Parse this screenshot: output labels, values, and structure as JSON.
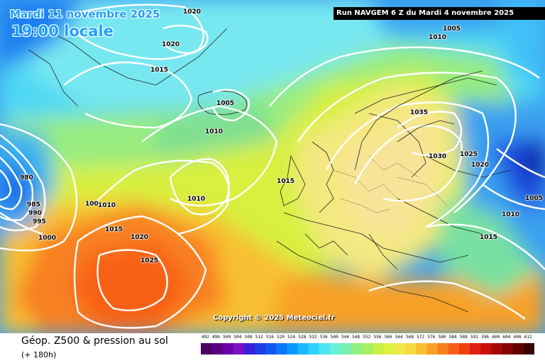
{
  "header": {
    "date_text": "Mardi 11 novembre 2025",
    "time_text": "19:00 locale",
    "run_text": "Run NAVGEM 6 Z du Mardi 4 novembre 2025"
  },
  "copyright": "Copyright © 2025 Meteociel.fr",
  "footer": {
    "title": "Géop. Z500 & pression au sol",
    "subtitle": "(+ 180h)"
  },
  "scale": {
    "labels": [
      "492",
      "496",
      "500",
      "504",
      "508",
      "512",
      "516",
      "520",
      "524",
      "528",
      "532",
      "536",
      "540",
      "544",
      "548",
      "552",
      "556",
      "560",
      "564",
      "568",
      "572",
      "576",
      "580",
      "584",
      "588",
      "592",
      "596",
      "600",
      "604",
      "608",
      "612"
    ],
    "colors": [
      "#4b0060",
      "#5a0080",
      "#6a00a8",
      "#7a10c8",
      "#3a20d8",
      "#1e3ce8",
      "#1058f0",
      "#0a78f8",
      "#0a98ff",
      "#18b8ff",
      "#30d0ff",
      "#50e4f4",
      "#68f0d8",
      "#78f0b0",
      "#90f080",
      "#a8f060",
      "#c8f048",
      "#e0f040",
      "#f0e848",
      "#f8d840",
      "#f8c030",
      "#f8a028",
      "#f88020",
      "#f86018",
      "#f04010",
      "#e02010",
      "#c81008",
      "#a80808",
      "#880404",
      "#600000",
      "#380000"
    ]
  },
  "isobar_labels": [
    {
      "text": "1020",
      "id": "i1020-top"
    },
    {
      "text": "1020",
      "id": "i1020-greenland"
    },
    {
      "text": "1015",
      "id": "i1015-greenland"
    },
    {
      "text": "1005",
      "id": "i1005-iceland"
    },
    {
      "text": "1010",
      "id": "i1010-north-atlantic"
    },
    {
      "text": "1005",
      "id": "i1005-norway-sea"
    },
    {
      "text": "1010",
      "id": "i1010-norway-sea"
    },
    {
      "text": "1035",
      "id": "i1035-scandinavia"
    },
    {
      "text": "1030",
      "id": "i1030-baltic"
    },
    {
      "text": "1025",
      "id": "i1025-russia"
    },
    {
      "text": "1020",
      "id": "i1020-russia"
    },
    {
      "text": "1015",
      "id": "i1015-biscay"
    },
    {
      "text": "1010",
      "id": "i1010-mid-atlantic"
    },
    {
      "text": "1010",
      "id": "i1010-west-atlantic"
    },
    {
      "text": "1005",
      "id": "i1005-east"
    },
    {
      "text": "1010",
      "id": "i1010-east"
    },
    {
      "text": "1015",
      "id": "i1015-turkey"
    },
    {
      "text": "1015",
      "id": "i1015-atlantic"
    },
    {
      "text": "1020",
      "id": "i1020-atlantic"
    },
    {
      "text": "1025",
      "id": "i1025-azores"
    },
    {
      "text": "980",
      "id": "i980-low"
    },
    {
      "text": "985",
      "id": "i985-low"
    },
    {
      "text": "990",
      "id": "i990-low"
    },
    {
      "text": "995",
      "id": "i995-low"
    },
    {
      "text": "1000",
      "id": "i1000-low"
    },
    {
      "text": "100",
      "id": "i100-partial"
    }
  ],
  "colors": {
    "header_text": "#1ea0ff",
    "run_box": "#000000",
    "isobar": "#ffffff"
  }
}
